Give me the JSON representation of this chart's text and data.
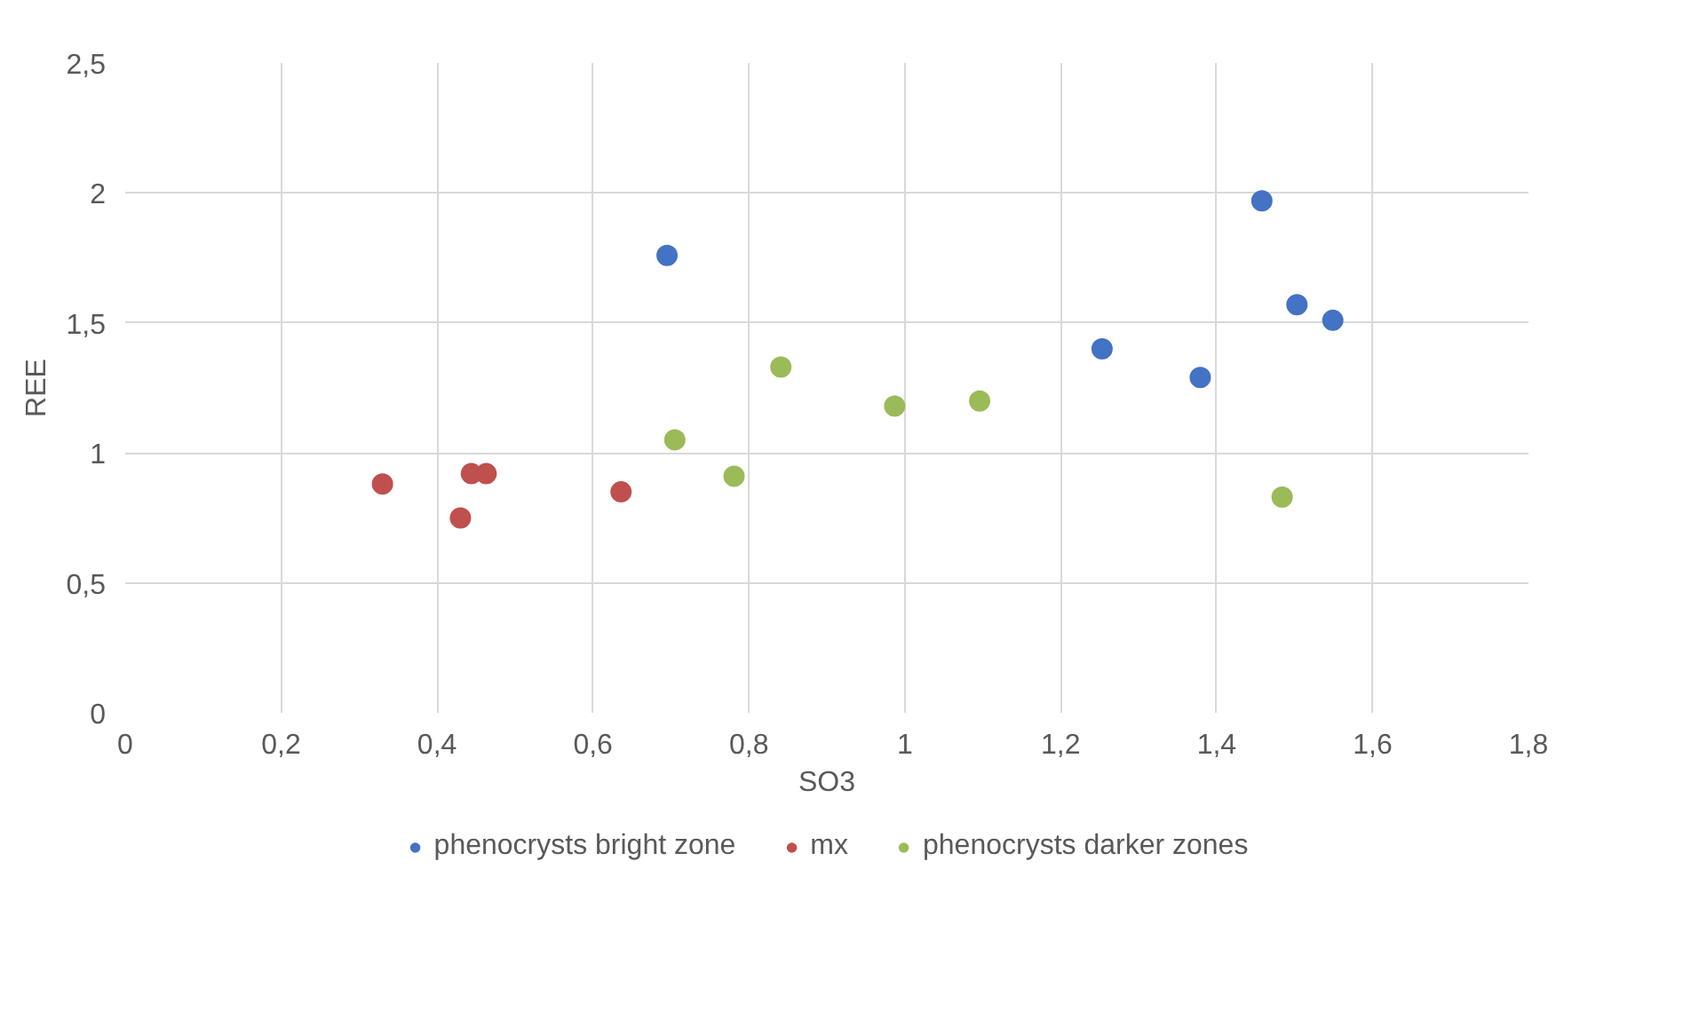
{
  "chart_data": {
    "type": "scatter",
    "xlabel": "SO3",
    "ylabel": "REE",
    "xlim": [
      0,
      1.8
    ],
    "ylim": [
      0,
      2.5
    ],
    "xticks": [
      0,
      {
        "value": 0.2,
        "label": "0,2"
      },
      {
        "value": 0.4,
        "label": "0,4"
      },
      {
        "value": 0.6,
        "label": "0,6"
      },
      {
        "value": 0.8,
        "label": "0,8"
      },
      1,
      {
        "value": 1.2,
        "label": "1,2"
      },
      {
        "value": 1.4,
        "label": "1,4"
      },
      {
        "value": 1.6,
        "label": "1,6"
      },
      {
        "value": 1.8,
        "label": "1,8"
      }
    ],
    "yticks": [
      0,
      {
        "value": 0.5,
        "label": "0,5"
      },
      1,
      {
        "value": 1.5,
        "label": "1,5"
      },
      2,
      {
        "value": 2.5,
        "label": "2,5"
      }
    ],
    "grid": true,
    "legend": "bottom",
    "marker": "circle",
    "series": [
      {
        "name": "phenocrysts bright zone",
        "color": "#4472c4",
        "x": [
          0.695,
          1.458,
          1.503,
          1.549,
          1.253,
          1.379
        ],
        "values": [
          1.76,
          1.97,
          1.57,
          1.51,
          1.4,
          1.29
        ]
      },
      {
        "name": "mx",
        "color": "#c0504d",
        "x": [
          0.33,
          0.43,
          0.444,
          0.463,
          0.636
        ],
        "values": [
          0.88,
          0.75,
          0.92,
          0.92,
          0.85
        ]
      },
      {
        "name": "phenocrysts darker zones",
        "color": "#9bbb59",
        "x": [
          0.705,
          0.781,
          0.841,
          0.987,
          1.096,
          1.484
        ],
        "values": [
          1.05,
          0.91,
          1.33,
          1.18,
          1.2,
          0.83
        ]
      }
    ]
  }
}
